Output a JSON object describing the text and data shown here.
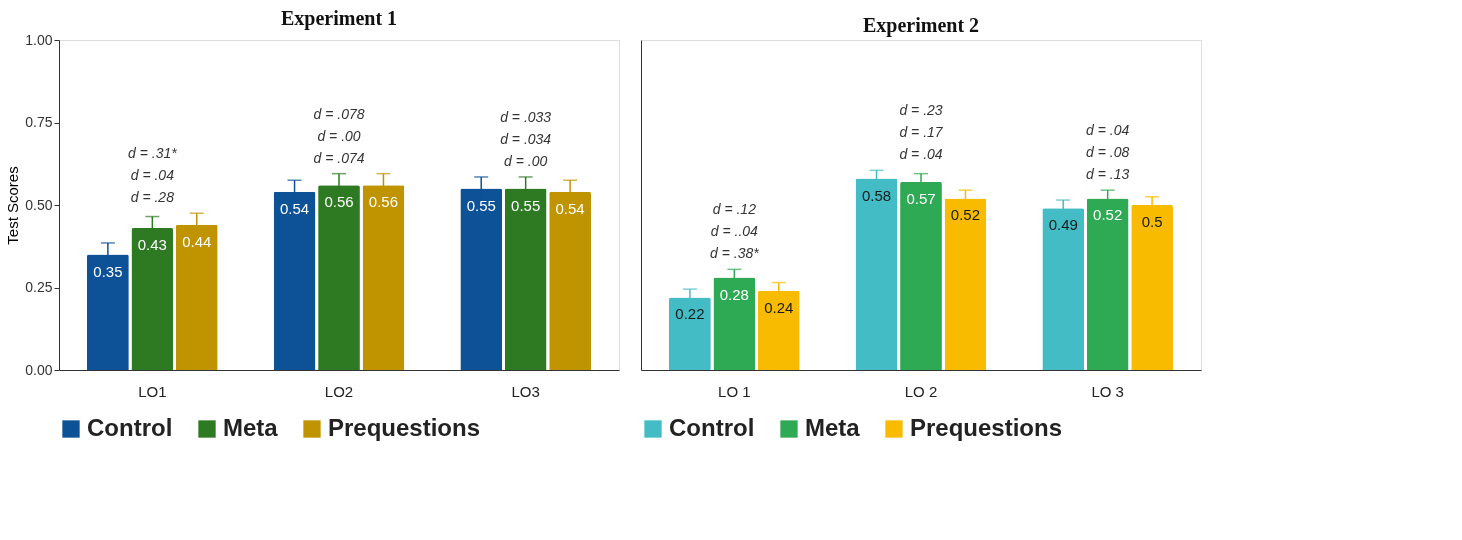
{
  "chart_data": [
    {
      "type": "bar",
      "title": "Experiment 1",
      "ylabel": "Test Scores",
      "categories": [
        "LO1",
        "LO2",
        "LO3"
      ],
      "series": [
        {
          "name": "Control",
          "color": "#0d5196",
          "values": [
            0.35,
            0.54,
            0.55
          ],
          "errors": [
            0.035,
            0.035,
            0.035
          ]
        },
        {
          "name": "Meta",
          "color": "#2e7a22",
          "values": [
            0.43,
            0.56,
            0.55
          ],
          "errors": [
            0.035,
            0.035,
            0.035
          ]
        },
        {
          "name": "Prequestions",
          "color": "#c09400",
          "values": [
            0.44,
            0.56,
            0.54
          ],
          "errors": [
            0.035,
            0.035,
            0.035
          ]
        }
      ],
      "ylim": [
        0,
        1
      ],
      "yticks": [
        {
          "value": 0,
          "label": "0.00"
        },
        {
          "value": 0.25,
          "label": "0.25"
        },
        {
          "value": 0.5,
          "label": "0.50"
        },
        {
          "value": 0.75,
          "label": "0.75"
        },
        {
          "value": 1,
          "label": "1.00"
        }
      ],
      "data_labels": true,
      "grid": false,
      "legend": "bottom",
      "annotations": [
        "d = .31*",
        "d = .04",
        "d = .28",
        "d = .078",
        "d = .00",
        "d = .074",
        "d = .033",
        "d = .034",
        "d = .00"
      ]
    },
    {
      "type": "bar",
      "title": "Experiment 2",
      "categories": [
        "LO 1",
        "LO 2",
        "LO 3"
      ],
      "series": [
        {
          "name": "Control",
          "color": "#44bcc5",
          "values": [
            0.22,
            0.58,
            0.49
          ],
          "errors": [
            0.025,
            0.025,
            0.025
          ]
        },
        {
          "name": "Meta",
          "color": "#2eaa55",
          "values": [
            0.28,
            0.57,
            0.52
          ],
          "errors": [
            0.025,
            0.025,
            0.025
          ]
        },
        {
          "name": "Prequestions",
          "color": "#f8bb00",
          "values": [
            0.24,
            0.52,
            0.5
          ],
          "errors": [
            0.025,
            0.025,
            0.025
          ]
        }
      ],
      "ylim": [
        0,
        1
      ],
      "tick_labels": "x",
      "data_labels": true,
      "grid": false,
      "legend": "bottom",
      "annotations": [
        "d = .12",
        "d = ..04",
        "d = .38*",
        "d = .23",
        "d = .17",
        "d = .04",
        "d = .04",
        "d = .08",
        "d = .13"
      ]
    }
  ]
}
